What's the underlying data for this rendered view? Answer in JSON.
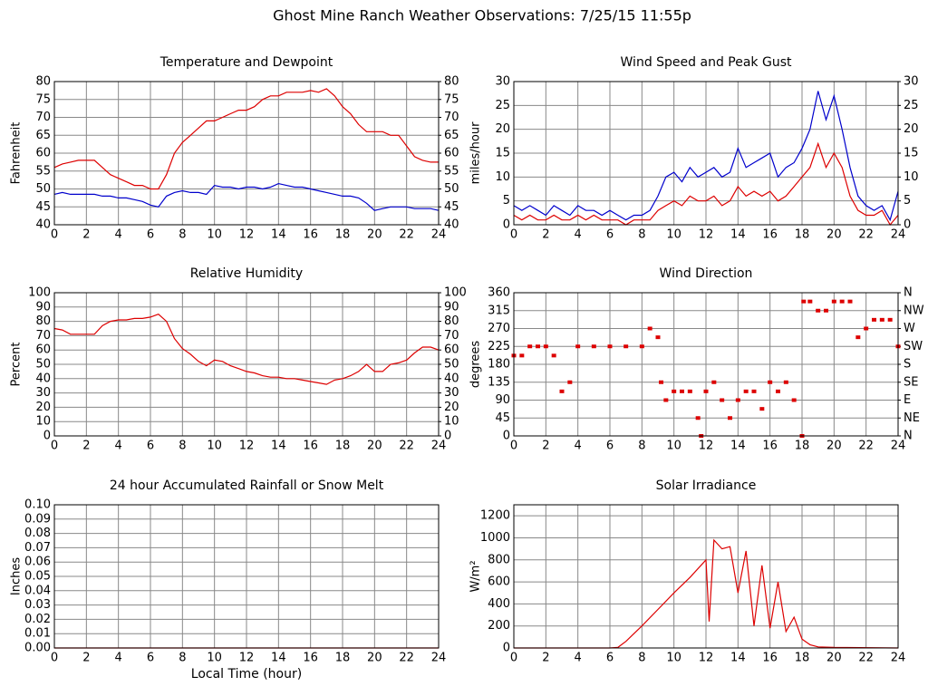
{
  "title": "Ghost Mine Ranch Weather Observations: 7/25/15 11:55p",
  "chart_data": [
    {
      "type": "line",
      "title": "Temperature and Dewpoint",
      "ylabel": "Fahrenheit",
      "x": [
        0,
        0.5,
        1,
        1.5,
        2,
        2.5,
        3,
        3.5,
        4,
        4.5,
        5,
        5.5,
        6,
        6.5,
        7,
        7.5,
        8,
        8.5,
        9,
        9.5,
        10,
        10.5,
        11,
        11.5,
        12,
        12.5,
        13,
        13.5,
        14,
        14.5,
        15,
        15.5,
        16,
        16.5,
        17,
        17.5,
        18,
        18.5,
        19,
        19.5,
        20,
        20.5,
        21,
        21.5,
        22,
        22.5,
        23,
        23.5,
        24
      ],
      "series": [
        {
          "name": "Temperature",
          "color": "#dd0000",
          "values": [
            56,
            57,
            57.5,
            58,
            58,
            58,
            56,
            54,
            53,
            52,
            51,
            51,
            50,
            50,
            54,
            60,
            63,
            65,
            67,
            69,
            69,
            70,
            71,
            72,
            72,
            73,
            75,
            76,
            76,
            77,
            77,
            77,
            77.5,
            77,
            78,
            76,
            73,
            71,
            68,
            66,
            66,
            66,
            65,
            65,
            62,
            59,
            58,
            57.5,
            57.5
          ]
        },
        {
          "name": "Dewpoint",
          "color": "#0000cc",
          "values": [
            48.5,
            49,
            48.5,
            48.5,
            48.5,
            48.5,
            48,
            48,
            47.5,
            47.5,
            47,
            46.5,
            45.5,
            45,
            48,
            49,
            49.5,
            49,
            49,
            48.5,
            51,
            50.5,
            50.5,
            50,
            50.5,
            50.5,
            50,
            50.5,
            51.5,
            51,
            50.5,
            50.5,
            50,
            49.5,
            49,
            48.5,
            48,
            48,
            47.5,
            46,
            44,
            44.5,
            45,
            45,
            45,
            44.5,
            44.5,
            44.5,
            44
          ]
        }
      ],
      "xlim": [
        0,
        24
      ],
      "xticks": [
        0,
        2,
        4,
        6,
        8,
        10,
        12,
        14,
        16,
        18,
        20,
        22,
        24
      ],
      "ylim": [
        40,
        80
      ],
      "yticks": [
        40,
        45,
        50,
        55,
        60,
        65,
        70,
        75,
        80
      ],
      "y2lim": [
        40,
        80
      ],
      "y2ticks": [
        40,
        45,
        50,
        55,
        60,
        65,
        70,
        75,
        80
      ],
      "grid": true
    },
    {
      "type": "line",
      "title": "Wind Speed and Peak Gust",
      "ylabel": "miles/hour",
      "x": [
        0,
        0.5,
        1,
        1.5,
        2,
        2.5,
        3,
        3.5,
        4,
        4.5,
        5,
        5.5,
        6,
        6.5,
        7,
        7.5,
        8,
        8.5,
        9,
        9.5,
        10,
        10.5,
        11,
        11.5,
        12,
        12.5,
        13,
        13.5,
        14,
        14.5,
        15,
        15.5,
        16,
        16.5,
        17,
        17.5,
        18,
        18.5,
        19,
        19.5,
        20,
        20.5,
        21,
        21.5,
        22,
        22.5,
        23,
        23.5,
        24
      ],
      "series": [
        {
          "name": "Peak Gust",
          "color": "#0000cc",
          "values": [
            4,
            3,
            4,
            3,
            2,
            4,
            3,
            2,
            4,
            3,
            3,
            2,
            3,
            2,
            1,
            2,
            2,
            3,
            6,
            10,
            11,
            9,
            12,
            10,
            11,
            12,
            10,
            11,
            16,
            12,
            13,
            14,
            15,
            10,
            12,
            13,
            16,
            20,
            28,
            22,
            27,
            20,
            12,
            6,
            4,
            3,
            4,
            1,
            7
          ]
        },
        {
          "name": "Wind Speed",
          "color": "#dd0000",
          "values": [
            2,
            1,
            2,
            1,
            1,
            2,
            1,
            1,
            2,
            1,
            2,
            1,
            1,
            1,
            0,
            1,
            1,
            1,
            3,
            4,
            5,
            4,
            6,
            5,
            5,
            6,
            4,
            5,
            8,
            6,
            7,
            6,
            7,
            5,
            6,
            8,
            10,
            12,
            17,
            12,
            15,
            12,
            6,
            3,
            2,
            2,
            3,
            0,
            2
          ]
        }
      ],
      "xlim": [
        0,
        24
      ],
      "xticks": [
        0,
        2,
        4,
        6,
        8,
        10,
        12,
        14,
        16,
        18,
        20,
        22,
        24
      ],
      "ylim": [
        0,
        30
      ],
      "yticks": [
        0,
        5,
        10,
        15,
        20,
        25,
        30
      ],
      "y2lim": [
        0,
        30
      ],
      "y2ticks": [
        0,
        5,
        10,
        15,
        20,
        25,
        30
      ],
      "grid": true
    },
    {
      "type": "line",
      "title": "Relative Humidity",
      "ylabel": "Percent",
      "x": [
        0,
        0.5,
        1,
        1.5,
        2,
        2.5,
        3,
        3.5,
        4,
        4.5,
        5,
        5.5,
        6,
        6.5,
        7,
        7.5,
        8,
        8.5,
        9,
        9.5,
        10,
        10.5,
        11,
        11.5,
        12,
        12.5,
        13,
        13.5,
        14,
        14.5,
        15,
        15.5,
        16,
        16.5,
        17,
        17.5,
        18,
        18.5,
        19,
        19.5,
        20,
        20.5,
        21,
        21.5,
        22,
        22.5,
        23,
        23.5,
        24
      ],
      "series": [
        {
          "name": "Relative Humidity",
          "color": "#dd0000",
          "values": [
            75,
            74,
            71,
            71,
            71,
            71,
            77,
            80,
            81,
            81,
            82,
            82,
            83,
            85,
            80,
            68,
            61,
            57,
            52,
            49,
            53,
            52,
            49,
            47,
            45,
            44,
            42,
            41,
            41,
            40,
            40,
            39,
            38,
            37,
            36,
            39,
            40,
            42,
            45,
            50,
            45,
            45,
            50,
            51,
            53,
            58,
            62,
            62,
            60
          ]
        }
      ],
      "xlim": [
        0,
        24
      ],
      "xticks": [
        0,
        2,
        4,
        6,
        8,
        10,
        12,
        14,
        16,
        18,
        20,
        22,
        24
      ],
      "ylim": [
        0,
        100
      ],
      "yticks": [
        0,
        10,
        20,
        30,
        40,
        50,
        60,
        70,
        80,
        90,
        100
      ],
      "y2lim": [
        0,
        100
      ],
      "y2ticks": [
        0,
        10,
        20,
        30,
        40,
        50,
        60,
        70,
        80,
        90,
        100
      ],
      "grid": true
    },
    {
      "type": "scatter",
      "title": "Wind Direction",
      "ylabel": "degrees",
      "x": [
        0,
        0.5,
        1,
        1.5,
        2,
        2.5,
        3,
        3.5,
        4,
        5,
        6,
        7,
        8,
        8.5,
        9,
        9.2,
        9.5,
        10,
        10.5,
        11,
        11.5,
        11.7,
        12,
        12.5,
        13,
        13.5,
        14,
        14.5,
        15,
        15.5,
        16,
        16.5,
        17,
        17.5,
        18,
        18.1,
        18.5,
        19,
        19.5,
        20,
        20.5,
        21,
        21.5,
        22,
        22.5,
        23,
        23.5,
        24
      ],
      "series": [
        {
          "name": "Wind Direction",
          "color": "#dd0000",
          "values": [
            202,
            202,
            225,
            225,
            225,
            202,
            112,
            135,
            225,
            225,
            225,
            225,
            225,
            270,
            248,
            135,
            90,
            112,
            112,
            112,
            45,
            0,
            112,
            135,
            90,
            45,
            90,
            112,
            112,
            68,
            135,
            112,
            135,
            90,
            0,
            338,
            338,
            315,
            315,
            338,
            338,
            338,
            248,
            270,
            292,
            292,
            292,
            225
          ]
        }
      ],
      "xlim": [
        0,
        24
      ],
      "xticks": [
        0,
        2,
        4,
        6,
        8,
        10,
        12,
        14,
        16,
        18,
        20,
        22,
        24
      ],
      "ylim": [
        0,
        360
      ],
      "yticks": [
        0,
        45,
        90,
        135,
        180,
        225,
        270,
        315,
        360
      ],
      "y2lim": [
        0,
        360
      ],
      "y2ticks": [
        {
          "value": 0,
          "label": "N"
        },
        {
          "value": 45,
          "label": "NE"
        },
        {
          "value": 90,
          "label": "E"
        },
        {
          "value": 135,
          "label": "SE"
        },
        {
          "value": 180,
          "label": "S"
        },
        {
          "value": 225,
          "label": "SW"
        },
        {
          "value": 270,
          "label": "W"
        },
        {
          "value": 315,
          "label": "NW"
        },
        {
          "value": 360,
          "label": "N"
        }
      ],
      "grid": true
    },
    {
      "type": "line",
      "title": "24 hour Accumulated Rainfall or Snow Melt",
      "ylabel": "Inches",
      "xlabel": "Local Time (hour)",
      "x": [
        0,
        24
      ],
      "series": [
        {
          "name": "Rainfall",
          "color": "#dd0000",
          "values": [
            0,
            0
          ]
        }
      ],
      "xlim": [
        0,
        24
      ],
      "xticks": [
        0,
        2,
        4,
        6,
        8,
        10,
        12,
        14,
        16,
        18,
        20,
        22,
        24
      ],
      "ylim": [
        0,
        0.1
      ],
      "yticks": [
        {
          "value": 0,
          "label": "0.00"
        },
        {
          "value": 0.01,
          "label": "0.01"
        },
        {
          "value": 0.02,
          "label": "0.02"
        },
        {
          "value": 0.03,
          "label": "0.03"
        },
        {
          "value": 0.04,
          "label": "0.04"
        },
        {
          "value": 0.05,
          "label": "0.05"
        },
        {
          "value": 0.06,
          "label": "0.06"
        },
        {
          "value": 0.07,
          "label": "0.07"
        },
        {
          "value": 0.08,
          "label": "0.08"
        },
        {
          "value": 0.09,
          "label": "0.09"
        },
        {
          "value": 0.1,
          "label": "0.10"
        }
      ],
      "grid": true
    },
    {
      "type": "line",
      "title": "Solar Irradiance",
      "ylabel": "W/m²",
      "x": [
        0,
        6,
        6.5,
        7,
        8,
        9,
        10,
        11,
        12,
        12.2,
        12.5,
        13,
        13.5,
        14,
        14.5,
        15,
        15.5,
        16,
        16.5,
        17,
        17.5,
        18,
        18.5,
        19,
        20,
        24
      ],
      "series": [
        {
          "name": "Solar Irradiance",
          "color": "#dd0000",
          "values": [
            0,
            0,
            5,
            60,
            200,
            350,
            500,
            640,
            800,
            240,
            980,
            900,
            920,
            500,
            880,
            200,
            750,
            180,
            600,
            150,
            280,
            80,
            30,
            10,
            5,
            0
          ]
        }
      ],
      "xlim": [
        0,
        24
      ],
      "xticks": [
        0,
        2,
        4,
        6,
        8,
        10,
        12,
        14,
        16,
        18,
        20,
        22,
        24
      ],
      "ylim": [
        0,
        1300
      ],
      "yticks": [
        0,
        200,
        400,
        600,
        800,
        1000,
        1200
      ],
      "grid": true
    }
  ]
}
